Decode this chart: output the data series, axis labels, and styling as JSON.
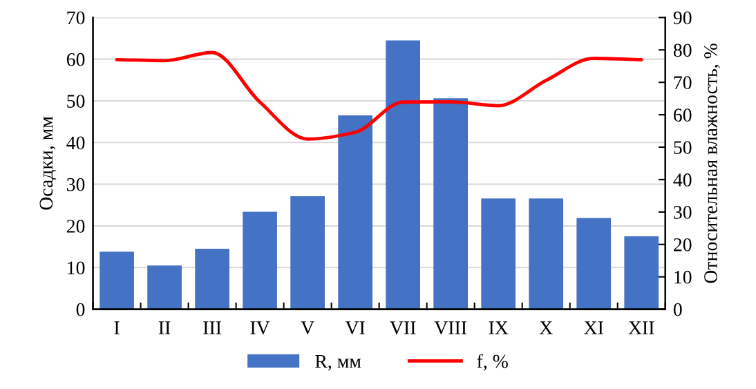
{
  "chart_data": {
    "type": "bar",
    "categories": [
      "I",
      "II",
      "III",
      "IV",
      "V",
      "VI",
      "VII",
      "VIII",
      "IX",
      "X",
      "XI",
      "XII"
    ],
    "ylabel": "Осадки, мм",
    "y2label": "Относительная влажность, %",
    "series": [
      {
        "name": "R, мм",
        "color": "#4472c4",
        "values": [
          13.8,
          10.5,
          14.5,
          23.4,
          27.1,
          46.5,
          64.5,
          50.6,
          26.6,
          26.6,
          21.9,
          17.5
        ]
      },
      {
        "name": "f, %",
        "type": "line",
        "axis": "y2",
        "color": "#ff0000",
        "values": [
          77.0,
          76.7,
          79.2,
          63.9,
          52.5,
          54.6,
          63.9,
          64.0,
          62.8,
          70.6,
          77.4,
          77.0
        ]
      }
    ],
    "ylim": [
      0,
      70
    ],
    "yticks": [
      0,
      10,
      20,
      30,
      40,
      50,
      60,
      70
    ],
    "y2lim": [
      0,
      90
    ],
    "y2ticks": [
      0,
      10,
      20,
      30,
      40,
      50,
      60,
      70,
      80,
      90
    ],
    "grid": "y",
    "legend": "bottom",
    "marker": "none",
    "line_style": "solid"
  }
}
